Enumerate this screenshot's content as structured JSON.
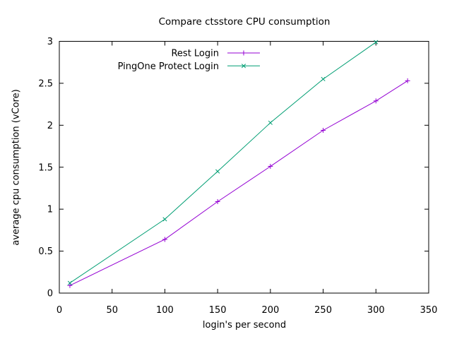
{
  "chart_data": {
    "type": "line",
    "title": "Compare ctsstore CPU consumption",
    "xlabel": "login's per second",
    "ylabel": "average cpu consumption (vCore)",
    "xlim": [
      0,
      350
    ],
    "ylim": [
      0,
      3
    ],
    "xticks": [
      0,
      50,
      100,
      150,
      200,
      250,
      300,
      350
    ],
    "yticks": [
      0,
      0.5,
      1,
      1.5,
      2,
      2.5,
      3
    ],
    "grid": false,
    "legend_position": "top-center-inside",
    "background_color": "#ffffff",
    "axis_color": "#000000",
    "series": [
      {
        "name": "Rest Login",
        "color": "#9400d3",
        "marker": "plus",
        "points": [
          [
            10,
            0.09
          ],
          [
            100,
            0.64
          ],
          [
            150,
            1.09
          ],
          [
            200,
            1.51
          ],
          [
            250,
            1.94
          ],
          [
            300,
            2.29
          ],
          [
            330,
            2.53
          ]
        ]
      },
      {
        "name": "PingOne Protect Login",
        "color": "#009e73",
        "marker": "cross",
        "points": [
          [
            10,
            0.12
          ],
          [
            100,
            0.88
          ],
          [
            150,
            1.45
          ],
          [
            200,
            2.03
          ],
          [
            250,
            2.55
          ],
          [
            300,
            2.99
          ]
        ]
      }
    ]
  }
}
